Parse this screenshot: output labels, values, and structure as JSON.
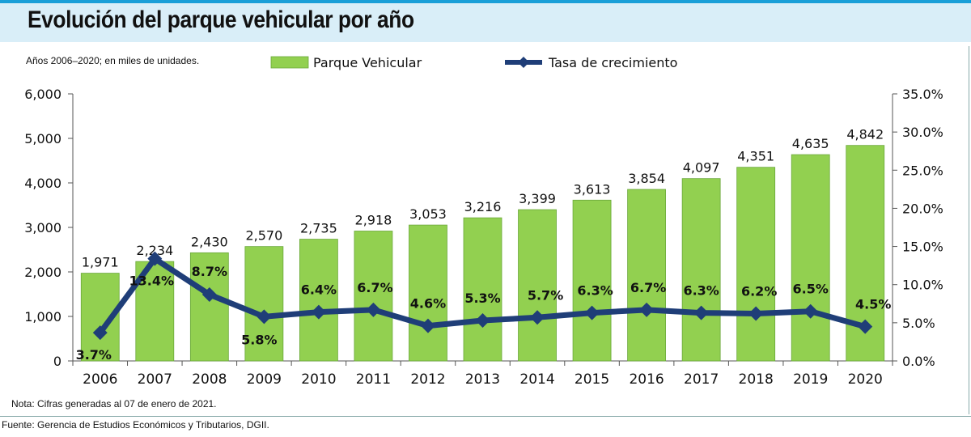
{
  "header": {
    "title": "Evolución del parque vehicular por año",
    "subtitle": "Años 2006–2020; en miles de unidades."
  },
  "footer": {
    "note": "Nota: Cifras generadas al 07 de enero de 2021.",
    "source": "Fuente: Gerencia de Estudios Económicos y Tributarios, DGII."
  },
  "colors": {
    "bar": "#92d050",
    "bar_edge": "#6aa83a",
    "line": "#1f3e78",
    "title_bg": "#d9eef8",
    "title_rule": "#1a9fd8"
  },
  "chart_data": {
    "type": "bar",
    "title": "Evolución del parque vehicular por año",
    "categories": [
      "2006",
      "2007",
      "2008",
      "2009",
      "2010",
      "2011",
      "2012",
      "2013",
      "2014",
      "2015",
      "2016",
      "2017",
      "2018",
      "2019",
      "2020"
    ],
    "series": [
      {
        "name": "Parque Vehicular",
        "type": "bar",
        "axis": "left",
        "values": [
          1971,
          2234,
          2430,
          2570,
          2735,
          2918,
          3053,
          3216,
          3399,
          3613,
          3854,
          4097,
          4351,
          4635,
          4842
        ],
        "labels": [
          "1,971",
          "2,234",
          "2,430",
          "2,570",
          "2,735",
          "2,918",
          "3,053",
          "3,216",
          "3,399",
          "3,613",
          "3,854",
          "4,097",
          "4,351",
          "4,635",
          "4,842"
        ]
      },
      {
        "name": "Tasa de crecimiento",
        "type": "line",
        "axis": "right",
        "values": [
          3.7,
          13.4,
          8.7,
          5.8,
          6.4,
          6.7,
          4.6,
          5.3,
          5.7,
          6.3,
          6.7,
          6.3,
          6.2,
          6.5,
          4.5
        ],
        "labels": [
          "3.7%",
          "13.4%",
          "8.7%",
          "5.8%",
          "6.4%",
          "6.7%",
          "4.6%",
          "5.3%",
          "5.7%",
          "6.3%",
          "6.7%",
          "6.3%",
          "6.2%",
          "6.5%",
          "4.5%"
        ]
      }
    ],
    "ylim": [
      0,
      6000
    ],
    "y_ticks": [
      "0",
      "1,000",
      "2,000",
      "3,000",
      "4,000",
      "5,000",
      "6,000"
    ],
    "y2lim": [
      0,
      35
    ],
    "y2_ticks": [
      "0.0%",
      "5.0%",
      "10.0%",
      "15.0%",
      "20.0%",
      "25.0%",
      "30.0%",
      "35.0%"
    ],
    "legend_position": "top",
    "grid": false
  }
}
